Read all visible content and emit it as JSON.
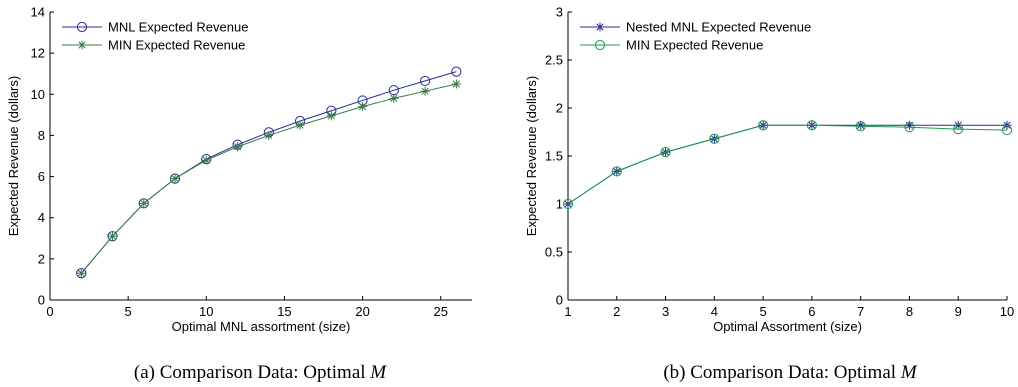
{
  "chart_data": [
    {
      "type": "line",
      "caption_prefix": "(a) Comparison Data:  Optimal",
      "caption_symbol": "M",
      "xlabel": "Optimal MNL assortment (size)",
      "ylabel": "Expected Revenue (dollars)",
      "xlim": [
        0,
        27
      ],
      "ylim": [
        0,
        14
      ],
      "xticks": [
        "0",
        "5",
        "10",
        "15",
        "20",
        "25"
      ],
      "yticks": [
        "0",
        "2",
        "4",
        "6",
        "8",
        "10",
        "12",
        "14"
      ],
      "legend_position": "top-left",
      "grid": false,
      "x": [
        2,
        4,
        6,
        8,
        10,
        12,
        14,
        16,
        18,
        20,
        22,
        24,
        26
      ],
      "series": [
        {
          "name": "MNL Expected Revenue",
          "color": "#2b2b8f",
          "marker": "circle",
          "values": [
            1.3,
            3.1,
            4.7,
            5.9,
            6.85,
            7.55,
            8.15,
            8.7,
            9.2,
            9.7,
            10.2,
            10.65,
            11.1
          ]
        },
        {
          "name": "MIN Expected Revenue",
          "color": "#3a7a4a",
          "marker": "star",
          "values": [
            1.3,
            3.1,
            4.7,
            5.9,
            6.8,
            7.45,
            8.0,
            8.5,
            8.95,
            9.4,
            9.8,
            10.15,
            10.5
          ]
        }
      ]
    },
    {
      "type": "line",
      "caption_prefix": "(b) Comparison Data:  Optimal",
      "caption_symbol": "M",
      "xlabel": "Optimal Assortment (size)",
      "ylabel": "Expected Revenue (dollars)",
      "xlim": [
        1,
        10
      ],
      "ylim": [
        0,
        3
      ],
      "xticks": [
        "1",
        "2",
        "3",
        "4",
        "5",
        "6",
        "7",
        "8",
        "9",
        "10"
      ],
      "yticks": [
        "0",
        "0.5",
        "1",
        "1.5",
        "2",
        "2.5",
        "3"
      ],
      "legend_position": "top-left",
      "grid": false,
      "x": [
        1,
        2,
        3,
        4,
        5,
        6,
        7,
        8,
        9,
        10
      ],
      "series": [
        {
          "name": "Nested MNL Expected Revenue",
          "color": "#2b2b8f",
          "marker": "star",
          "values": [
            1.0,
            1.34,
            1.54,
            1.68,
            1.82,
            1.82,
            1.82,
            1.82,
            1.82,
            1.82
          ]
        },
        {
          "name": "MIN Expected Revenue",
          "color": "#1f9a4f",
          "marker": "circle",
          "values": [
            1.0,
            1.34,
            1.54,
            1.68,
            1.82,
            1.82,
            1.81,
            1.8,
            1.78,
            1.77
          ]
        }
      ]
    }
  ]
}
